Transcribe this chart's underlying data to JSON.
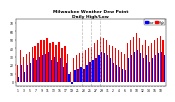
{
  "title": "Milwaukee Weather Dew Point",
  "subtitle": "Daily High/Low",
  "background_color": "#ffffff",
  "high_color": "#ff0000",
  "low_color": "#0000ff",
  "legend_high": "High",
  "legend_low": "Low",
  "ylim": [
    -5,
    75
  ],
  "yticks": [
    0,
    10,
    20,
    30,
    40,
    50,
    60,
    70
  ],
  "vlines": [
    21.5,
    24.5,
    27.5
  ],
  "highs": [
    20,
    38,
    30,
    33,
    36,
    42,
    43,
    46,
    50,
    50,
    52,
    46,
    48,
    44,
    48,
    40,
    43,
    33,
    12,
    28,
    32,
    35,
    34,
    38,
    40,
    42,
    46,
    50,
    54,
    52,
    50,
    44,
    43,
    40,
    38,
    36,
    33,
    46,
    50,
    54,
    58,
    52,
    44,
    50,
    43,
    46,
    50,
    52,
    55,
    50
  ],
  "lows": [
    6,
    20,
    12,
    20,
    22,
    28,
    26,
    30,
    32,
    33,
    36,
    26,
    30,
    24,
    28,
    18,
    23,
    10,
    -2,
    14,
    16,
    18,
    16,
    20,
    24,
    26,
    28,
    32,
    36,
    34,
    32,
    28,
    23,
    20,
    18,
    16,
    14,
    28,
    32,
    36,
    38,
    34,
    28,
    32,
    24,
    28,
    32,
    34,
    36,
    32
  ],
  "xlabels": [
    "1",
    "",
    "3",
    "",
    "5",
    "",
    "7",
    "",
    "9",
    "",
    "11",
    "",
    "13",
    "",
    "15",
    "",
    "17",
    "",
    "19",
    "",
    "21",
    "",
    "23",
    "",
    "25",
    "",
    "27",
    "",
    "29",
    "",
    "31",
    "",
    "2",
    "",
    "4",
    "",
    "6",
    "",
    "8",
    "",
    "10",
    "",
    "12",
    "",
    "14",
    "",
    "16",
    "",
    "18",
    ""
  ]
}
